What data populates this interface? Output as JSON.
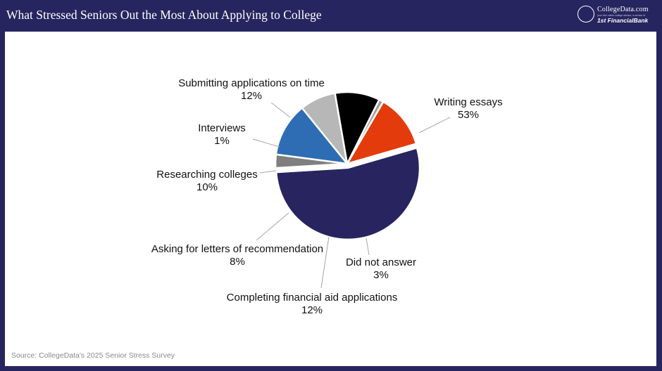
{
  "header": {
    "title": "What Stressed Seniors Out the Most About Applying to College"
  },
  "logo": {
    "name": "CollegeData.com",
    "tagline": "your free online college advisor, a service of",
    "bank": "1st FinancialBank"
  },
  "chart_data": {
    "type": "pie",
    "start_angle_deg": -16.2,
    "direction": "clockwise",
    "exploded_slice": "Writing essays",
    "slices": [
      {
        "label": "Writing essays",
        "value": 53,
        "display": "53%",
        "color": "#27245f"
      },
      {
        "label": "Did not answer",
        "value": 3,
        "display": "3%",
        "color": "#7f7f7f"
      },
      {
        "label": "Completing financial aid applications",
        "value": 12,
        "display": "12%",
        "color": "#2e6db4"
      },
      {
        "label": "Asking for letters of recommendation",
        "value": 8,
        "display": "8%",
        "color": "#b7b7b7"
      },
      {
        "label": "Researching colleges",
        "value": 10,
        "display": "10%",
        "color": "#000000"
      },
      {
        "label": "Interviews",
        "value": 1,
        "display": "1%",
        "color": "#9d9d9d"
      },
      {
        "label": "Submitting applications on time",
        "value": 12,
        "display": "12%",
        "color": "#e33b0b"
      }
    ]
  },
  "source": "Source: CollegeData's 2025 Senior Stress Survey"
}
